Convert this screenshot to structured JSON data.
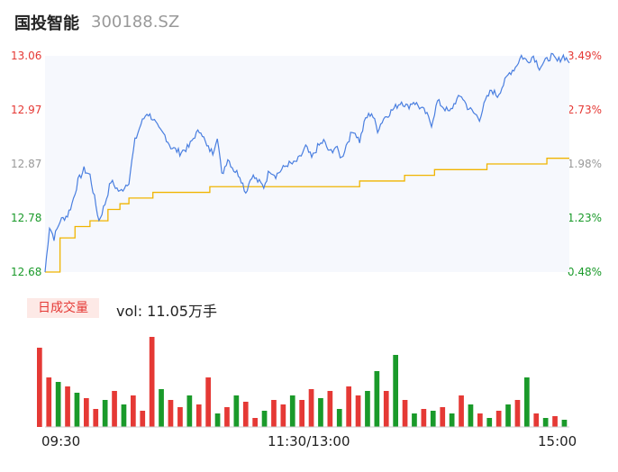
{
  "header": {
    "name": "国投智能",
    "code": "300188.SZ"
  },
  "price_axis": [
    "13.06",
    "12.97",
    "12.87",
    "12.78",
    "12.68"
  ],
  "pct_axis": [
    "3.49%",
    "2.73%",
    "1.98%",
    "1.23%",
    "0.48%"
  ],
  "volume": {
    "tab_label": "日成交量",
    "text": "vol: 11.05万手"
  },
  "time_axis": [
    "09:30",
    "11:30/13:00",
    "15:00"
  ],
  "colors": {
    "price_line": "#4a7fe0",
    "avg_line": "#f0b400",
    "area_fill": "#f6f8fd",
    "up": "#e53935",
    "down": "#1a9a2a",
    "flat": "#999999"
  },
  "chart_data": [
    {
      "type": "line",
      "series": [],
      "ylim": [
        12.68,
        13.06
      ],
      "pct_range": [
        "0.48%",
        "3.49%"
      ],
      "x": [
        "09:30",
        "11:30/13:00",
        "15:00"
      ],
      "price_keypoints": [
        [
          0,
          12.68
        ],
        [
          3,
          12.76
        ],
        [
          6,
          12.74
        ],
        [
          10,
          12.77
        ],
        [
          15,
          12.78
        ],
        [
          18,
          12.8
        ],
        [
          22,
          12.84
        ],
        [
          26,
          12.86
        ],
        [
          30,
          12.85
        ],
        [
          36,
          12.77
        ],
        [
          40,
          12.8
        ],
        [
          44,
          12.84
        ],
        [
          50,
          12.82
        ],
        [
          56,
          12.84
        ],
        [
          60,
          12.91
        ],
        [
          64,
          12.94
        ],
        [
          68,
          12.96
        ],
        [
          72,
          12.95
        ],
        [
          76,
          12.93
        ],
        [
          80,
          12.92
        ],
        [
          84,
          12.9
        ],
        [
          90,
          12.89
        ],
        [
          96,
          12.9
        ],
        [
          100,
          12.92
        ],
        [
          104,
          12.93
        ],
        [
          108,
          12.9
        ],
        [
          112,
          12.89
        ],
        [
          115,
          12.92
        ],
        [
          118,
          12.85
        ],
        [
          122,
          12.88
        ],
        [
          126,
          12.86
        ],
        [
          130,
          12.85
        ],
        [
          134,
          12.82
        ],
        [
          138,
          12.85
        ],
        [
          142,
          12.84
        ],
        [
          146,
          12.83
        ],
        [
          150,
          12.86
        ],
        [
          154,
          12.85
        ],
        [
          158,
          12.86
        ],
        [
          162,
          12.87
        ],
        [
          166,
          12.87
        ],
        [
          170,
          12.88
        ],
        [
          174,
          12.9
        ],
        [
          178,
          12.88
        ],
        [
          182,
          12.9
        ],
        [
          186,
          12.91
        ],
        [
          190,
          12.89
        ],
        [
          194,
          12.9
        ],
        [
          198,
          12.88
        ],
        [
          202,
          12.91
        ],
        [
          206,
          12.93
        ],
        [
          210,
          12.91
        ],
        [
          214,
          12.95
        ],
        [
          218,
          12.96
        ],
        [
          222,
          12.93
        ],
        [
          226,
          12.95
        ],
        [
          230,
          12.96
        ],
        [
          234,
          12.97
        ],
        [
          238,
          12.98
        ],
        [
          242,
          12.97
        ],
        [
          246,
          12.98
        ],
        [
          250,
          12.97
        ],
        [
          254,
          12.96
        ],
        [
          258,
          12.94
        ],
        [
          262,
          12.98
        ],
        [
          266,
          12.97
        ],
        [
          270,
          12.96
        ],
        [
          274,
          12.98
        ],
        [
          278,
          12.99
        ],
        [
          282,
          12.97
        ],
        [
          286,
          12.96
        ],
        [
          290,
          12.95
        ],
        [
          294,
          12.98
        ],
        [
          298,
          13.0
        ],
        [
          302,
          12.99
        ],
        [
          306,
          13.01
        ],
        [
          310,
          13.03
        ],
        [
          314,
          13.04
        ],
        [
          318,
          13.06
        ],
        [
          322,
          13.05
        ],
        [
          326,
          13.06
        ],
        [
          330,
          13.04
        ],
        [
          334,
          13.05
        ],
        [
          338,
          13.06
        ],
        [
          342,
          13.05
        ],
        [
          346,
          13.06
        ],
        [
          350,
          13.05
        ]
      ],
      "avg_keypoints": [
        [
          0,
          12.68
        ],
        [
          10,
          12.74
        ],
        [
          20,
          12.76
        ],
        [
          30,
          12.77
        ],
        [
          42,
          12.79
        ],
        [
          50,
          12.8
        ],
        [
          56,
          12.81
        ],
        [
          72,
          12.82
        ],
        [
          110,
          12.83
        ],
        [
          200,
          12.83
        ],
        [
          210,
          12.84
        ],
        [
          235,
          12.84
        ],
        [
          240,
          12.85
        ],
        [
          260,
          12.86
        ],
        [
          290,
          12.86
        ],
        [
          295,
          12.87
        ],
        [
          330,
          12.87
        ],
        [
          335,
          12.88
        ],
        [
          350,
          12.88
        ]
      ],
      "n_points": 350
    },
    {
      "type": "bar",
      "series": [],
      "values": [
        [
          1,
          0.88,
          1
        ],
        [
          2,
          0.55,
          1
        ],
        [
          3,
          0.5,
          0
        ],
        [
          4,
          0.45,
          1
        ],
        [
          5,
          0.38,
          0
        ],
        [
          6,
          0.32,
          1
        ],
        [
          7,
          0.2,
          1
        ],
        [
          8,
          0.3,
          0
        ],
        [
          9,
          0.4,
          1
        ],
        [
          10,
          0.25,
          0
        ],
        [
          11,
          0.35,
          1
        ],
        [
          12,
          0.18,
          1
        ],
        [
          13,
          1.0,
          1
        ],
        [
          14,
          0.42,
          0
        ],
        [
          15,
          0.3,
          1
        ],
        [
          16,
          0.22,
          1
        ],
        [
          17,
          0.35,
          0
        ],
        [
          18,
          0.25,
          1
        ],
        [
          19,
          0.55,
          1
        ],
        [
          20,
          0.15,
          0
        ],
        [
          21,
          0.22,
          1
        ],
        [
          22,
          0.35,
          0
        ],
        [
          23,
          0.28,
          1
        ],
        [
          24,
          0.1,
          1
        ],
        [
          25,
          0.18,
          0
        ],
        [
          26,
          0.3,
          1
        ],
        [
          27,
          0.25,
          1
        ],
        [
          28,
          0.35,
          0
        ],
        [
          29,
          0.3,
          1
        ],
        [
          30,
          0.42,
          1
        ],
        [
          31,
          0.32,
          0
        ],
        [
          32,
          0.4,
          1
        ],
        [
          33,
          0.2,
          0
        ],
        [
          34,
          0.45,
          1
        ],
        [
          35,
          0.35,
          1
        ],
        [
          36,
          0.4,
          0
        ],
        [
          37,
          0.62,
          0
        ],
        [
          38,
          0.4,
          1
        ],
        [
          39,
          0.8,
          0
        ],
        [
          40,
          0.3,
          1
        ],
        [
          41,
          0.15,
          0
        ],
        [
          42,
          0.2,
          1
        ],
        [
          43,
          0.18,
          0
        ],
        [
          44,
          0.22,
          1
        ],
        [
          45,
          0.15,
          0
        ],
        [
          46,
          0.35,
          1
        ],
        [
          47,
          0.25,
          0
        ],
        [
          48,
          0.15,
          1
        ],
        [
          49,
          0.1,
          0
        ],
        [
          50,
          0.18,
          1
        ],
        [
          51,
          0.25,
          0
        ],
        [
          52,
          0.3,
          1
        ],
        [
          53,
          0.55,
          0
        ],
        [
          54,
          0.15,
          1
        ],
        [
          55,
          0.1,
          0
        ],
        [
          56,
          0.12,
          1
        ],
        [
          57,
          0.08,
          0
        ]
      ],
      "scale_note": "relative to max bar"
    }
  ]
}
